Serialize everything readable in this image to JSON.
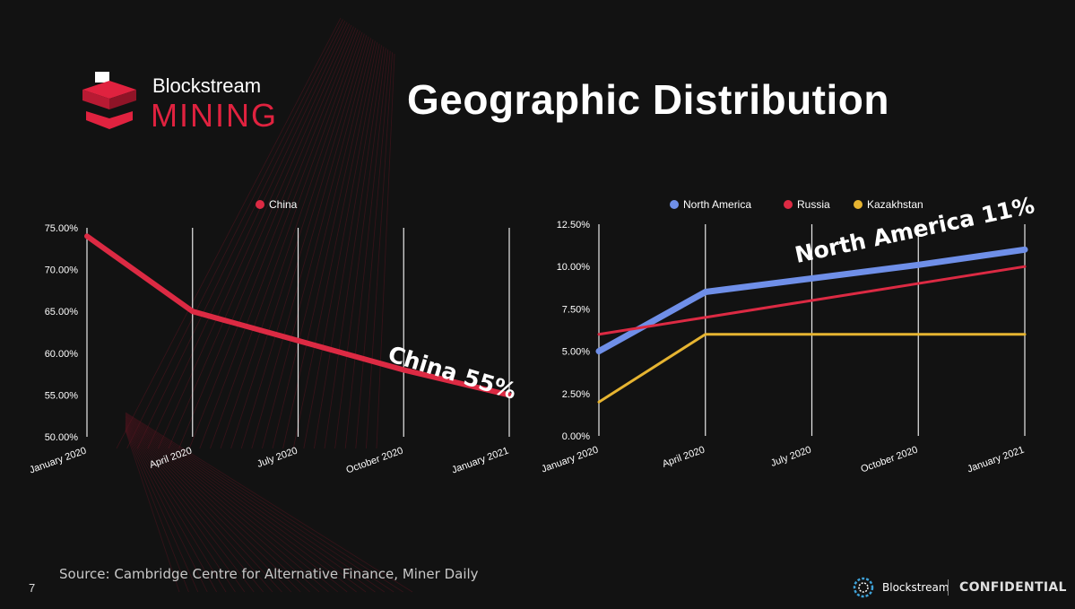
{
  "title": "Geographic Distribution",
  "logo": {
    "brand": "Blockstream",
    "product": "MINING"
  },
  "source": "Source: Cambridge Centre for Alternative Finance, Miner Daily",
  "page_number": "7",
  "footer": {
    "brand": "Blockstream",
    "label": "CONFIDENTIAL"
  },
  "annotations": {
    "china": "China 55%",
    "north_america": "North America 11%"
  },
  "colors": {
    "accent": "#e0223f",
    "background": "#121212",
    "north_america": "#6f8fe8",
    "russia": "#dc2a43",
    "kazakhstan": "#e6b431"
  },
  "chart_data": [
    {
      "type": "line",
      "title": "",
      "categories": [
        "January 2020",
        "April 2020",
        "July 2020",
        "October 2020",
        "January 2021"
      ],
      "series": [
        {
          "name": "China",
          "values": [
            74,
            65,
            61.5,
            58,
            55
          ],
          "color": "#dc2a43"
        }
      ],
      "ylim": [
        50,
        75
      ],
      "yticks": [
        "75.00%",
        "70.00%",
        "65.00%",
        "60.00%",
        "55.00%",
        "50.00%"
      ],
      "legend": "top-center",
      "grid": "vertical"
    },
    {
      "type": "line",
      "title": "",
      "categories": [
        "January 2020",
        "April 2020",
        "July 2020",
        "October 2020",
        "January 2021"
      ],
      "series": [
        {
          "name": "North America",
          "values": [
            5,
            8.5,
            9.3,
            10.1,
            11
          ],
          "color": "#6f8fe8"
        },
        {
          "name": "Russia",
          "values": [
            6,
            7,
            8,
            9,
            10
          ],
          "color": "#dc2a43"
        },
        {
          "name": "Kazakhstan",
          "values": [
            2,
            6,
            6,
            6,
            6
          ],
          "color": "#e6b431"
        }
      ],
      "ylim": [
        0,
        12.5
      ],
      "yticks": [
        "12.50%",
        "10.00%",
        "7.50%",
        "5.00%",
        "2.50%",
        "0.00%"
      ],
      "legend": "top-center",
      "grid": "vertical"
    }
  ]
}
